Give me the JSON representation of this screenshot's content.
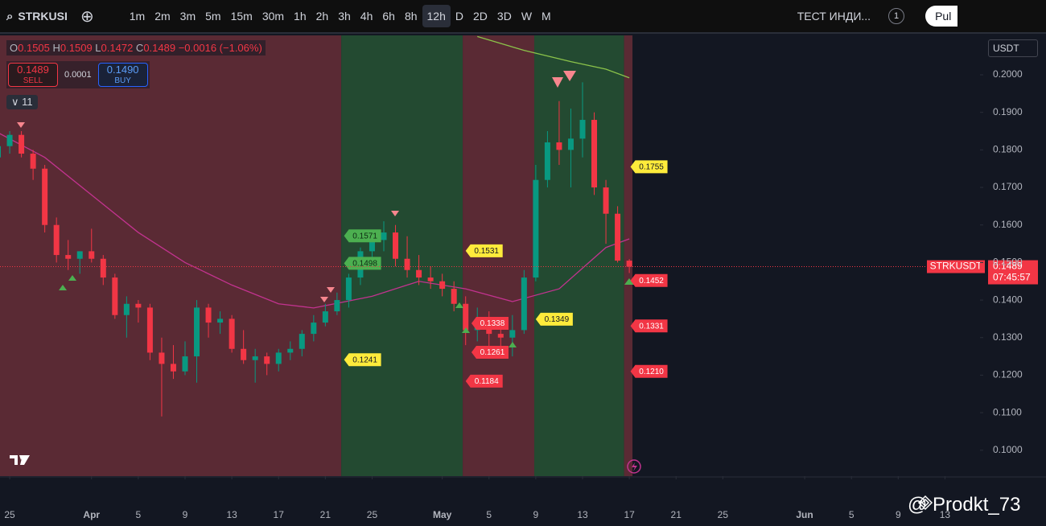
{
  "toolbar": {
    "symbol": "STRKUSI",
    "intervals": [
      "1m",
      "2m",
      "3m",
      "5m",
      "15m",
      "30m",
      "1h",
      "2h",
      "3h",
      "4h",
      "6h",
      "8h",
      "12h",
      "D",
      "2D",
      "3D",
      "W",
      "M"
    ],
    "active_interval": "12h",
    "indicator": "ТЕСТ ИНДИ...",
    "indicator_count": "1",
    "publish": "Pul"
  },
  "legend": {
    "open_label": "O",
    "open": "0.1505",
    "high_label": "H",
    "high": "0.1509",
    "low_label": "L",
    "low": "0.1472",
    "close_label": "C",
    "close": "0.1489",
    "change": "−0.0016 (−1.06%)"
  },
  "trade": {
    "sell_price": "0.1489",
    "sell_label": "SELL",
    "spread": "0.0001",
    "buy_price": "0.1490",
    "buy_label": "BUY"
  },
  "indicators_toggle": "11",
  "currency": "USDT",
  "watermark": "@ Prodkt_73",
  "chart_data": {
    "type": "candlestick",
    "up_color": "#089981",
    "down_color": "#f23645",
    "x": [
      -1,
      0,
      1,
      2,
      3,
      4,
      5,
      6,
      7,
      8,
      9,
      10,
      11,
      12,
      13,
      14,
      15,
      16,
      17,
      18,
      19,
      20,
      21,
      22,
      23,
      24,
      25,
      26,
      27,
      28,
      29,
      30,
      31,
      32,
      33,
      34,
      35,
      36,
      37,
      38,
      39,
      40,
      41,
      42,
      43,
      44,
      45,
      46,
      47,
      48,
      49,
      50,
      51,
      52,
      53
    ],
    "open": [
      0.178,
      0.181,
      0.184,
      0.179,
      0.175,
      0.16,
      0.152,
      0.151,
      0.153,
      0.151,
      0.146,
      0.136,
      0.139,
      0.138,
      0.126,
      0.123,
      0.121,
      0.125,
      0.138,
      0.134,
      0.135,
      0.127,
      0.124,
      0.125,
      0.123,
      0.126,
      0.127,
      0.131,
      0.134,
      0.137,
      0.14,
      0.146,
      0.153,
      0.156,
      0.158,
      0.151,
      0.148,
      0.146,
      0.145,
      0.143,
      0.139,
      0.132,
      0.134,
      0.131,
      0.13,
      0.132,
      0.146,
      0.172,
      0.182,
      0.18,
      0.183,
      0.188,
      0.17,
      0.163,
      0.1505
    ],
    "high": [
      0.182,
      0.185,
      0.185,
      0.18,
      0.176,
      0.162,
      0.156,
      0.153,
      0.159,
      0.152,
      0.147,
      0.141,
      0.14,
      0.139,
      0.13,
      0.128,
      0.129,
      0.14,
      0.139,
      0.137,
      0.136,
      0.132,
      0.127,
      0.126,
      0.127,
      0.129,
      0.132,
      0.136,
      0.139,
      0.142,
      0.147,
      0.154,
      0.158,
      0.161,
      0.16,
      0.157,
      0.152,
      0.149,
      0.147,
      0.145,
      0.141,
      0.138,
      0.137,
      0.134,
      0.136,
      0.148,
      0.176,
      0.185,
      0.193,
      0.191,
      0.198,
      0.19,
      0.172,
      0.165,
      0.1509
    ],
    "low": [
      0.176,
      0.179,
      0.178,
      0.172,
      0.158,
      0.15,
      0.148,
      0.147,
      0.15,
      0.144,
      0.135,
      0.13,
      0.134,
      0.124,
      0.109,
      0.119,
      0.12,
      0.118,
      0.13,
      0.131,
      0.126,
      0.123,
      0.118,
      0.12,
      0.121,
      0.124,
      0.125,
      0.129,
      0.133,
      0.136,
      0.138,
      0.144,
      0.15,
      0.153,
      0.149,
      0.146,
      0.144,
      0.143,
      0.141,
      0.137,
      0.128,
      0.129,
      0.126,
      0.127,
      0.125,
      0.131,
      0.145,
      0.17,
      0.176,
      0.17,
      0.178,
      0.168,
      0.155,
      0.15,
      0.1472
    ],
    "close": [
      0.181,
      0.184,
      0.179,
      0.175,
      0.16,
      0.152,
      0.151,
      0.153,
      0.151,
      0.146,
      0.136,
      0.139,
      0.138,
      0.126,
      0.123,
      0.121,
      0.125,
      0.138,
      0.134,
      0.135,
      0.127,
      0.124,
      0.125,
      0.123,
      0.126,
      0.127,
      0.131,
      0.134,
      0.137,
      0.14,
      0.146,
      0.153,
      0.156,
      0.158,
      0.151,
      0.148,
      0.146,
      0.145,
      0.143,
      0.139,
      0.132,
      0.134,
      0.131,
      0.13,
      0.132,
      0.146,
      0.172,
      0.182,
      0.18,
      0.183,
      0.188,
      0.17,
      0.163,
      0.1505,
      0.1489
    ],
    "zones": [
      {
        "start": -0.83,
        "end": 28.36,
        "color": "#5a2a34"
      },
      {
        "start": 28.36,
        "end": 38.75,
        "color": "#234a31"
      },
      {
        "start": 38.75,
        "end": 44.87,
        "color": "#5a2a34"
      },
      {
        "start": 44.87,
        "end": 52.55,
        "color": "#234a31"
      },
      {
        "start": 52.55,
        "end": 53.27,
        "color": "#5a2a34"
      }
    ],
    "lines": [
      {
        "color": "#c2338f",
        "x": [
          -1,
          3,
          7,
          11,
          15,
          19,
          23,
          26,
          31,
          35,
          39,
          43,
          47,
          51,
          53
        ],
        "values": [
          0.1846,
          0.178,
          0.168,
          0.158,
          0.15,
          0.144,
          0.139,
          0.1379,
          0.141,
          0.145,
          0.143,
          0.1396,
          0.143,
          0.154,
          0.1563
        ]
      },
      {
        "color": "#8bc34a",
        "x": [
          40,
          44,
          48,
          51,
          53
        ],
        "values": [
          0.2102,
          0.2065,
          0.2035,
          0.2015,
          0.1992
        ]
      }
    ],
    "price_tags": [
      {
        "x": 28.6,
        "value": 0.1571,
        "label": "0.1571",
        "color": "#4caf50",
        "text_color": "#0d2a12"
      },
      {
        "x": 28.6,
        "value": 0.1498,
        "label": "0.1498",
        "color": "#4caf50",
        "text_color": "#0d2a12"
      },
      {
        "x": 28.6,
        "value": 0.1241,
        "label": "0.1241",
        "color": "#ffeb3b",
        "text_color": "#131722"
      },
      {
        "x": 39.0,
        "value": 0.1531,
        "label": "0.1531",
        "color": "#ffeb3b",
        "text_color": "#131722"
      },
      {
        "x": 39.0,
        "value": 0.1184,
        "label": "0.1184",
        "color": "#f23645",
        "text_color": "#ffffff"
      },
      {
        "x": 39.5,
        "value": 0.1338,
        "label": "0.1338",
        "color": "#f23645",
        "text_color": "#ffffff"
      },
      {
        "x": 39.5,
        "value": 0.1261,
        "label": "0.1261",
        "color": "#f23645",
        "text_color": "#ffffff"
      },
      {
        "x": 45.0,
        "value": 0.1349,
        "label": "0.1349",
        "color": "#ffeb3b",
        "text_color": "#131722"
      },
      {
        "x": 53.1,
        "value": 0.1755,
        "label": "0.1755",
        "color": "#ffeb3b",
        "text_color": "#131722"
      },
      {
        "x": 53.1,
        "value": 0.1452,
        "label": "0.1452",
        "color": "#f23645",
        "text_color": "#ffffff"
      },
      {
        "x": 53.1,
        "value": 0.1331,
        "label": "0.1331",
        "color": "#f23645",
        "text_color": "#ffffff"
      },
      {
        "x": 53.1,
        "value": 0.121,
        "label": "0.1210",
        "color": "#f23645",
        "text_color": "#ffffff"
      }
    ],
    "last_price": {
      "symbol": "STRKUSDT",
      "value": 0.1489,
      "label": "0.1489",
      "countdown": "07:45:57",
      "color": "#f23645"
    },
    "xlim": [
      -0.83,
      83.0
    ],
    "xticks": [
      {
        "value": 0,
        "label": "25"
      },
      {
        "value": 7,
        "label": "Apr"
      },
      {
        "value": 11,
        "label": "5"
      },
      {
        "value": 15,
        "label": "9"
      },
      {
        "value": 19,
        "label": "13"
      },
      {
        "value": 23,
        "label": "17"
      },
      {
        "value": 27,
        "label": "21"
      },
      {
        "value": 31,
        "label": "25"
      },
      {
        "value": 37,
        "label": "May"
      },
      {
        "value": 41,
        "label": "5"
      },
      {
        "value": 45,
        "label": "9"
      },
      {
        "value": 49,
        "label": "13"
      },
      {
        "value": 53,
        "label": "17"
      },
      {
        "value": 57,
        "label": "21"
      },
      {
        "value": 61,
        "label": "25"
      },
      {
        "value": 68,
        "label": "Jun"
      },
      {
        "value": 72,
        "label": "5"
      },
      {
        "value": 76,
        "label": "9"
      },
      {
        "value": 80,
        "label": "13"
      }
    ],
    "ylim": [
      0.0931,
      0.2105
    ],
    "yticks": [
      {
        "value": 0.1,
        "label": "0.1000"
      },
      {
        "value": 0.11,
        "label": "0.1100"
      },
      {
        "value": 0.12,
        "label": "0.1200"
      },
      {
        "value": 0.13,
        "label": "0.1300"
      },
      {
        "value": 0.14,
        "label": "0.1400"
      },
      {
        "value": 0.15,
        "label": "0.1500"
      },
      {
        "value": 0.16,
        "label": "0.1600"
      },
      {
        "value": 0.17,
        "label": "0.1700"
      },
      {
        "value": 0.18,
        "label": "0.1800"
      },
      {
        "value": 0.19,
        "label": "0.1900"
      },
      {
        "value": 0.2,
        "label": "0.2000"
      }
    ]
  }
}
